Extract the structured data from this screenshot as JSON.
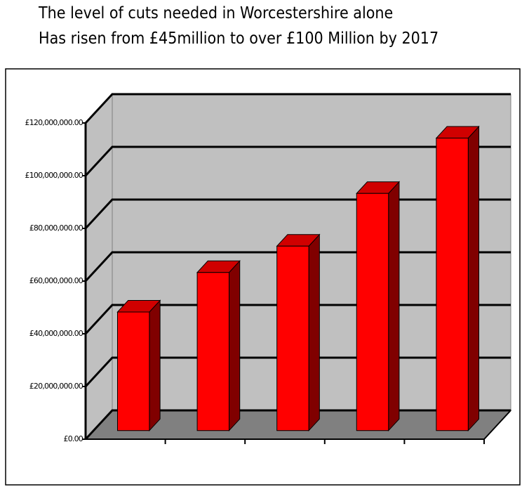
{
  "chart_data": {
    "type": "bar3d",
    "title": [
      "The level of cuts needed in Worcestershire alone",
      "Has risen from £45million to over £100 Million by 2017"
    ],
    "categories": [
      null,
      null,
      null,
      null,
      null
    ],
    "values": [
      45000000,
      60000000,
      70000000,
      90000000,
      111000000
    ],
    "color": "#ff0000",
    "ylim": [
      0,
      120000000
    ],
    "yticks": [
      {
        "value": 0,
        "label": "£0.00"
      },
      {
        "value": 20000000,
        "label": "£20,000,000.00"
      },
      {
        "value": 40000000,
        "label": "£40,000,000.00"
      },
      {
        "value": 60000000,
        "label": "£60,000,000.00"
      },
      {
        "value": 80000000,
        "label": "£80,000,000.00"
      },
      {
        "value": 100000000,
        "label": "£100,000,000.00"
      },
      {
        "value": 120000000,
        "label": "£120,000,000.00"
      }
    ],
    "grid": true
  }
}
